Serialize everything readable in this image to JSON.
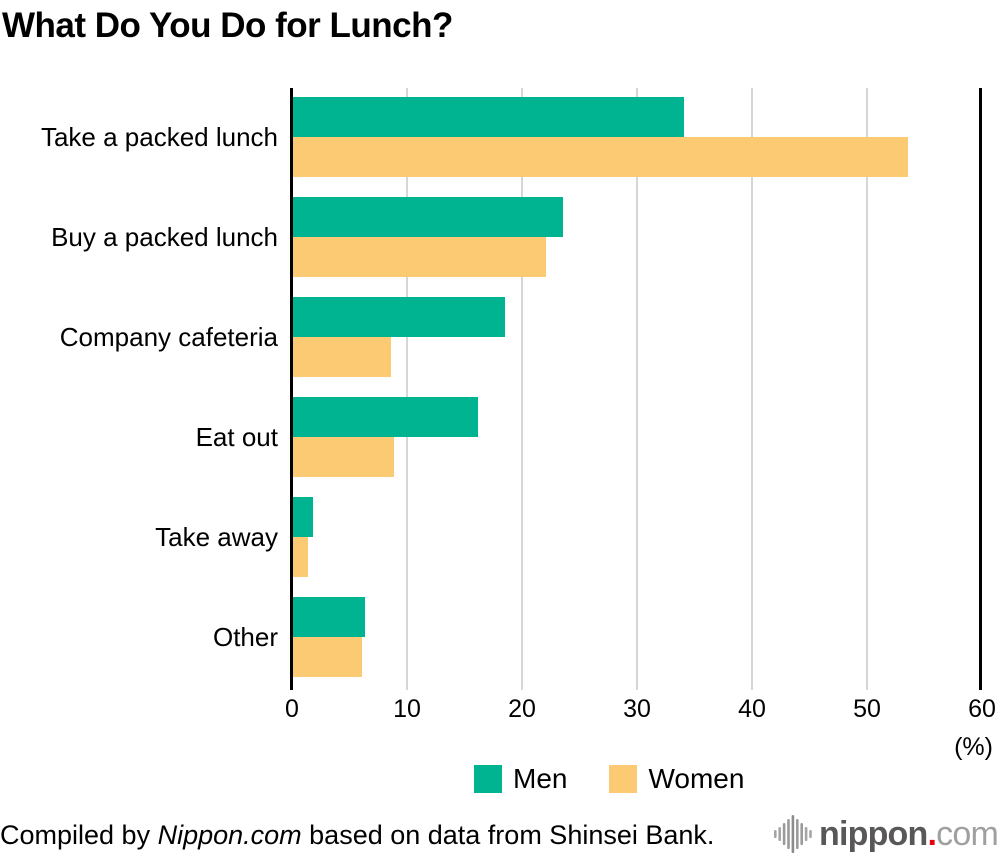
{
  "chart_data": {
    "type": "bar",
    "orientation": "horizontal",
    "title": "What Do You Do for Lunch?",
    "categories": [
      "Take a packed lunch",
      "Buy a packed lunch",
      "Company cafeteria",
      "Eat out",
      "Take away",
      "Other"
    ],
    "series": [
      {
        "name": "Men",
        "color": "#00b491",
        "values": [
          34.0,
          23.5,
          18.4,
          16.1,
          1.7,
          6.3
        ]
      },
      {
        "name": "Women",
        "color": "#fbca73",
        "values": [
          53.5,
          22.0,
          8.5,
          8.8,
          1.3,
          6.0
        ]
      }
    ],
    "x_axis": {
      "ticks": [
        0,
        10,
        20,
        30,
        40,
        50,
        60
      ],
      "max": 60,
      "unit_label": "(%)"
    },
    "grid": true,
    "legend_position": "bottom",
    "gridline_color": "#d6d6d6",
    "axis_color": "#000000"
  },
  "footer": {
    "credit_prefix": "Compiled by ",
    "credit_source": "Nippon.com",
    "credit_suffix": " based on data from Shinsei Bank.",
    "logo": {
      "icon": "sound-wave-icon",
      "name": "nippon",
      "dot": ".",
      "tld": "com",
      "brand_dark": "#595757",
      "brand_light": "#9fa0a0",
      "dot_red": "#e60012"
    }
  }
}
